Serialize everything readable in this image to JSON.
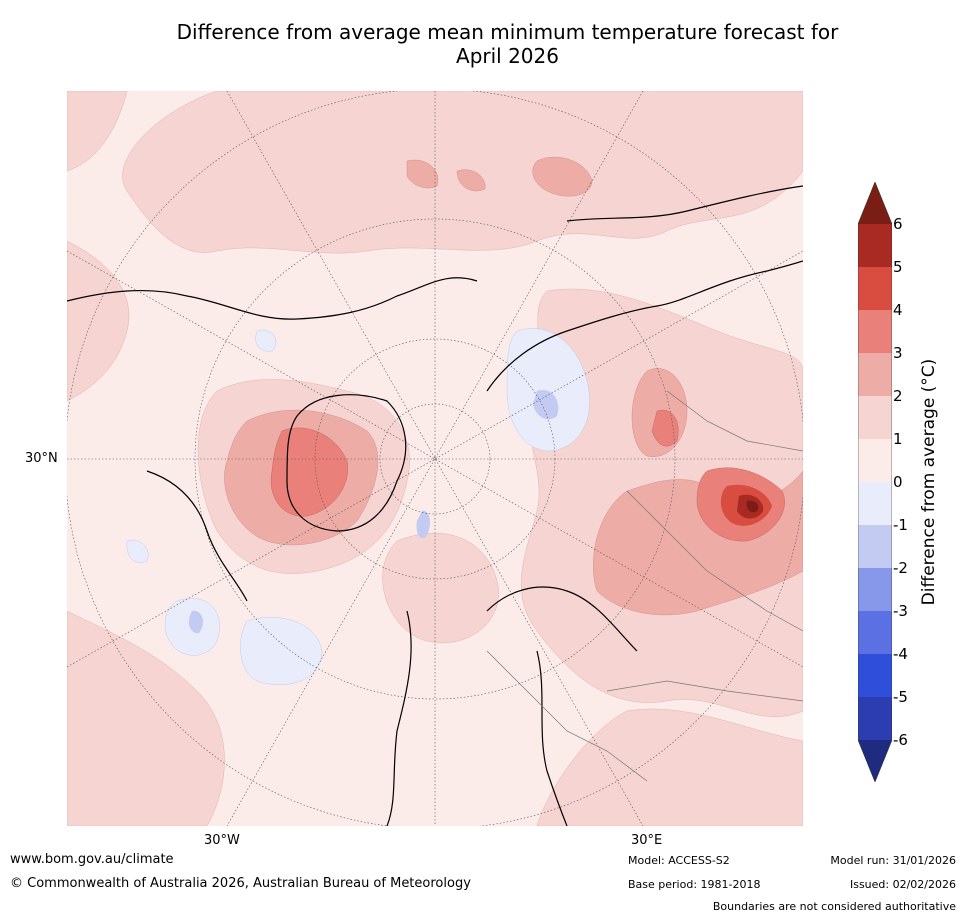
{
  "title_line1": "Difference from average mean minimum temperature forecast for",
  "title_line2": "April 2026",
  "map": {
    "lat_label": "30°N",
    "lon_labels": [
      "30°W",
      "30°E"
    ],
    "background_color": "#fbecea"
  },
  "colorbar": {
    "label": "Difference from average (°C)",
    "ticks": [
      "6",
      "5",
      "4",
      "3",
      "2",
      "1",
      "0",
      "-1",
      "-2",
      "-3",
      "-4",
      "-5",
      "-6"
    ],
    "colors": {
      "above6": "#7a1d14",
      "b5_6": "#a92a22",
      "b4_5": "#d94c40",
      "b3_4": "#e9817a",
      "b2_3": "#eeaca6",
      "b1_2": "#f6d4d1",
      "b0_1": "#fbecea",
      "bm1_0": "#e8ecfb",
      "bm2_m1": "#c4cbf2",
      "bm3_m2": "#8797ea",
      "bm4_m3": "#5b70e2",
      "bm5_m4": "#2f4fdb",
      "bm6_m5": "#2b3db1",
      "below_m6": "#1f2b7f"
    }
  },
  "footer": {
    "website": "www.bom.gov.au/climate",
    "copyright": "© Commonwealth of Australia 2026, Australian Bureau of Meteorology",
    "model": "Model: ACCESS-S2",
    "base_period": "Base period: 1981-2018",
    "model_run": "Model run: 31/01/2026",
    "issued": "Issued: 02/02/2026",
    "disclaimer": "Boundaries are not considered authoritative"
  }
}
